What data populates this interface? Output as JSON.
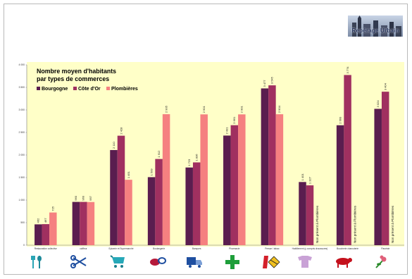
{
  "logo": {
    "text": "Repérage Urbain"
  },
  "chart_data": {
    "type": "bar",
    "title": "Nombre moyen d'habitants par types de commerces",
    "title_lines": [
      "Nombre moyen d'habitants",
      "par types de commerces"
    ],
    "categories": [
      "Restauration collective",
      "coiffeur",
      "Epicerie et Supermarché",
      "Boulangerie",
      "Banques",
      "Pharmacie",
      "Presse / tabac",
      "Habillement (y compris chaussures)",
      "Boucherie charcuterie",
      "Fleuriste"
    ],
    "series": [
      {
        "name": "Bourgogne",
        "color": "#5a1d4f",
        "values": [
          462,
          960,
          2110,
          1509,
          1723,
          2431,
          3477,
          1401,
          2660,
          3024
        ]
      },
      {
        "name": "Côte d'Or",
        "color": "#a03060",
        "values": [
          467,
          960,
          2428,
          1912,
          1836,
          2661,
          3545,
          1327,
          3774,
          3404
        ]
      },
      {
        "name": "Plombières",
        "color": "#f58080",
        "values": [
          725,
          957,
          1451,
          2905,
          2901,
          2901,
          2904,
          null,
          null,
          null
        ]
      }
    ],
    "value_labels": [
      [
        "462",
        "467",
        "725"
      ],
      [
        "960",
        "960",
        "957"
      ],
      [
        "2 110",
        "2 428",
        "1 451"
      ],
      [
        "1 509",
        "1 912",
        "2 905"
      ],
      [
        "1 723",
        "1 836",
        "2 901"
      ],
      [
        "2 431",
        "2 661",
        "2 901"
      ],
      [
        "3 477",
        "3 545",
        "2 904"
      ],
      [
        "1 401",
        "1 327",
        null
      ],
      [
        "2 660",
        "3 774",
        null
      ],
      [
        "3 024",
        "3 404",
        null
      ]
    ],
    "not_present_label": "Non présent à Plombières",
    "y_ticks": [
      "0",
      "500",
      "1 000",
      "1 500",
      "2 000",
      "2 500",
      "3 000",
      "3 500",
      "4 000"
    ],
    "ylim": [
      0,
      4000
    ],
    "legend_position": "top-left",
    "grid": false,
    "background": "#ffffc8"
  },
  "icons": [
    "cutlery-icon",
    "scissors-icon",
    "shopping-cart-icon",
    "bread-icon",
    "money-truck-icon",
    "pharmacy-cross-icon",
    "newspaper-tobacco-icon",
    "tshirt-icon",
    "cow-icon",
    "flower-icon"
  ]
}
